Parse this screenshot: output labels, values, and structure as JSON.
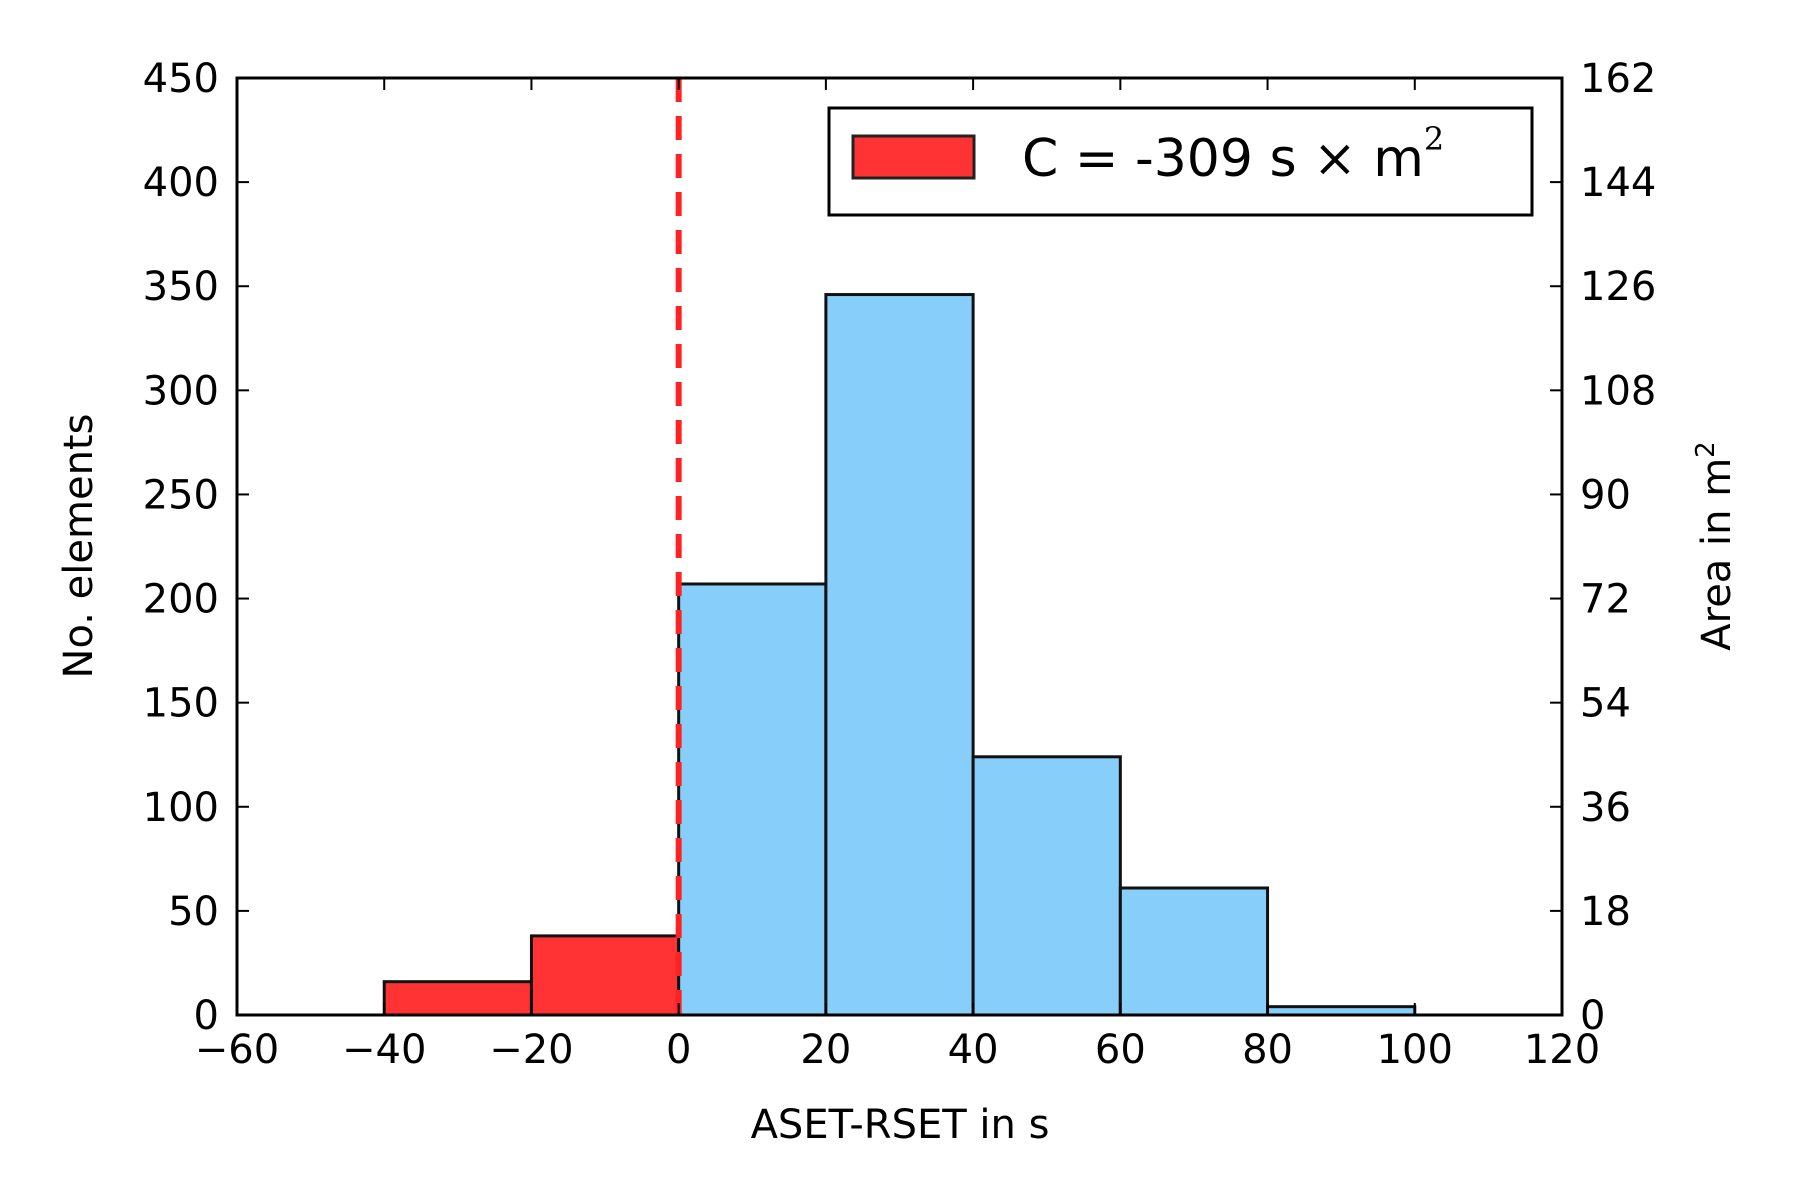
{
  "chart_data": {
    "type": "bar",
    "title": "",
    "xlabel": "ASET-RSET in s",
    "ylabel": "No. elements",
    "ylabel_right": "Area in m",
    "ylabel_right_sup": "2",
    "xlim": [
      -60,
      120
    ],
    "ylim": [
      0,
      450
    ],
    "ylim_right": [
      0,
      162
    ],
    "xticks": [
      -60,
      -40,
      -20,
      0,
      20,
      40,
      60,
      80,
      100,
      120
    ],
    "xtick_labels": [
      "−60",
      "−40",
      "−20",
      "0",
      "20",
      "40",
      "60",
      "80",
      "100",
      "120"
    ],
    "yticks": [
      0,
      50,
      100,
      150,
      200,
      250,
      300,
      350,
      400,
      450
    ],
    "ytick_labels": [
      "0",
      "50",
      "100",
      "150",
      "200",
      "250",
      "300",
      "350",
      "400",
      "450"
    ],
    "yticks_right": [
      0,
      18,
      36,
      54,
      72,
      90,
      108,
      126,
      144,
      162
    ],
    "ytick_labels_right": [
      "0",
      "18",
      "36",
      "54",
      "72",
      "90",
      "108",
      "126",
      "144",
      "162"
    ],
    "grid": false,
    "legend_position": "top-right",
    "bins": [
      {
        "x0": -40,
        "x1": -20,
        "value": 16,
        "color": "#ff3333"
      },
      {
        "x0": -20,
        "x1": 0,
        "value": 38,
        "color": "#ff3333"
      },
      {
        "x0": 0,
        "x1": 20,
        "value": 207,
        "color": "#87cefa"
      },
      {
        "x0": 20,
        "x1": 40,
        "value": 346,
        "color": "#87cefa"
      },
      {
        "x0": 40,
        "x1": 60,
        "value": 124,
        "color": "#87cefa"
      },
      {
        "x0": 60,
        "x1": 80,
        "value": 61,
        "color": "#87cefa"
      },
      {
        "x0": 80,
        "x1": 100,
        "value": 4,
        "color": "#87cefa"
      }
    ],
    "threshold_line": {
      "x": 0,
      "color": "#ff2222",
      "style": "dashed"
    },
    "legend": {
      "text_before": "C = -309 s ",
      "times": "×",
      "text_after": " m",
      "sup": "2",
      "color": "#ff3333"
    }
  }
}
